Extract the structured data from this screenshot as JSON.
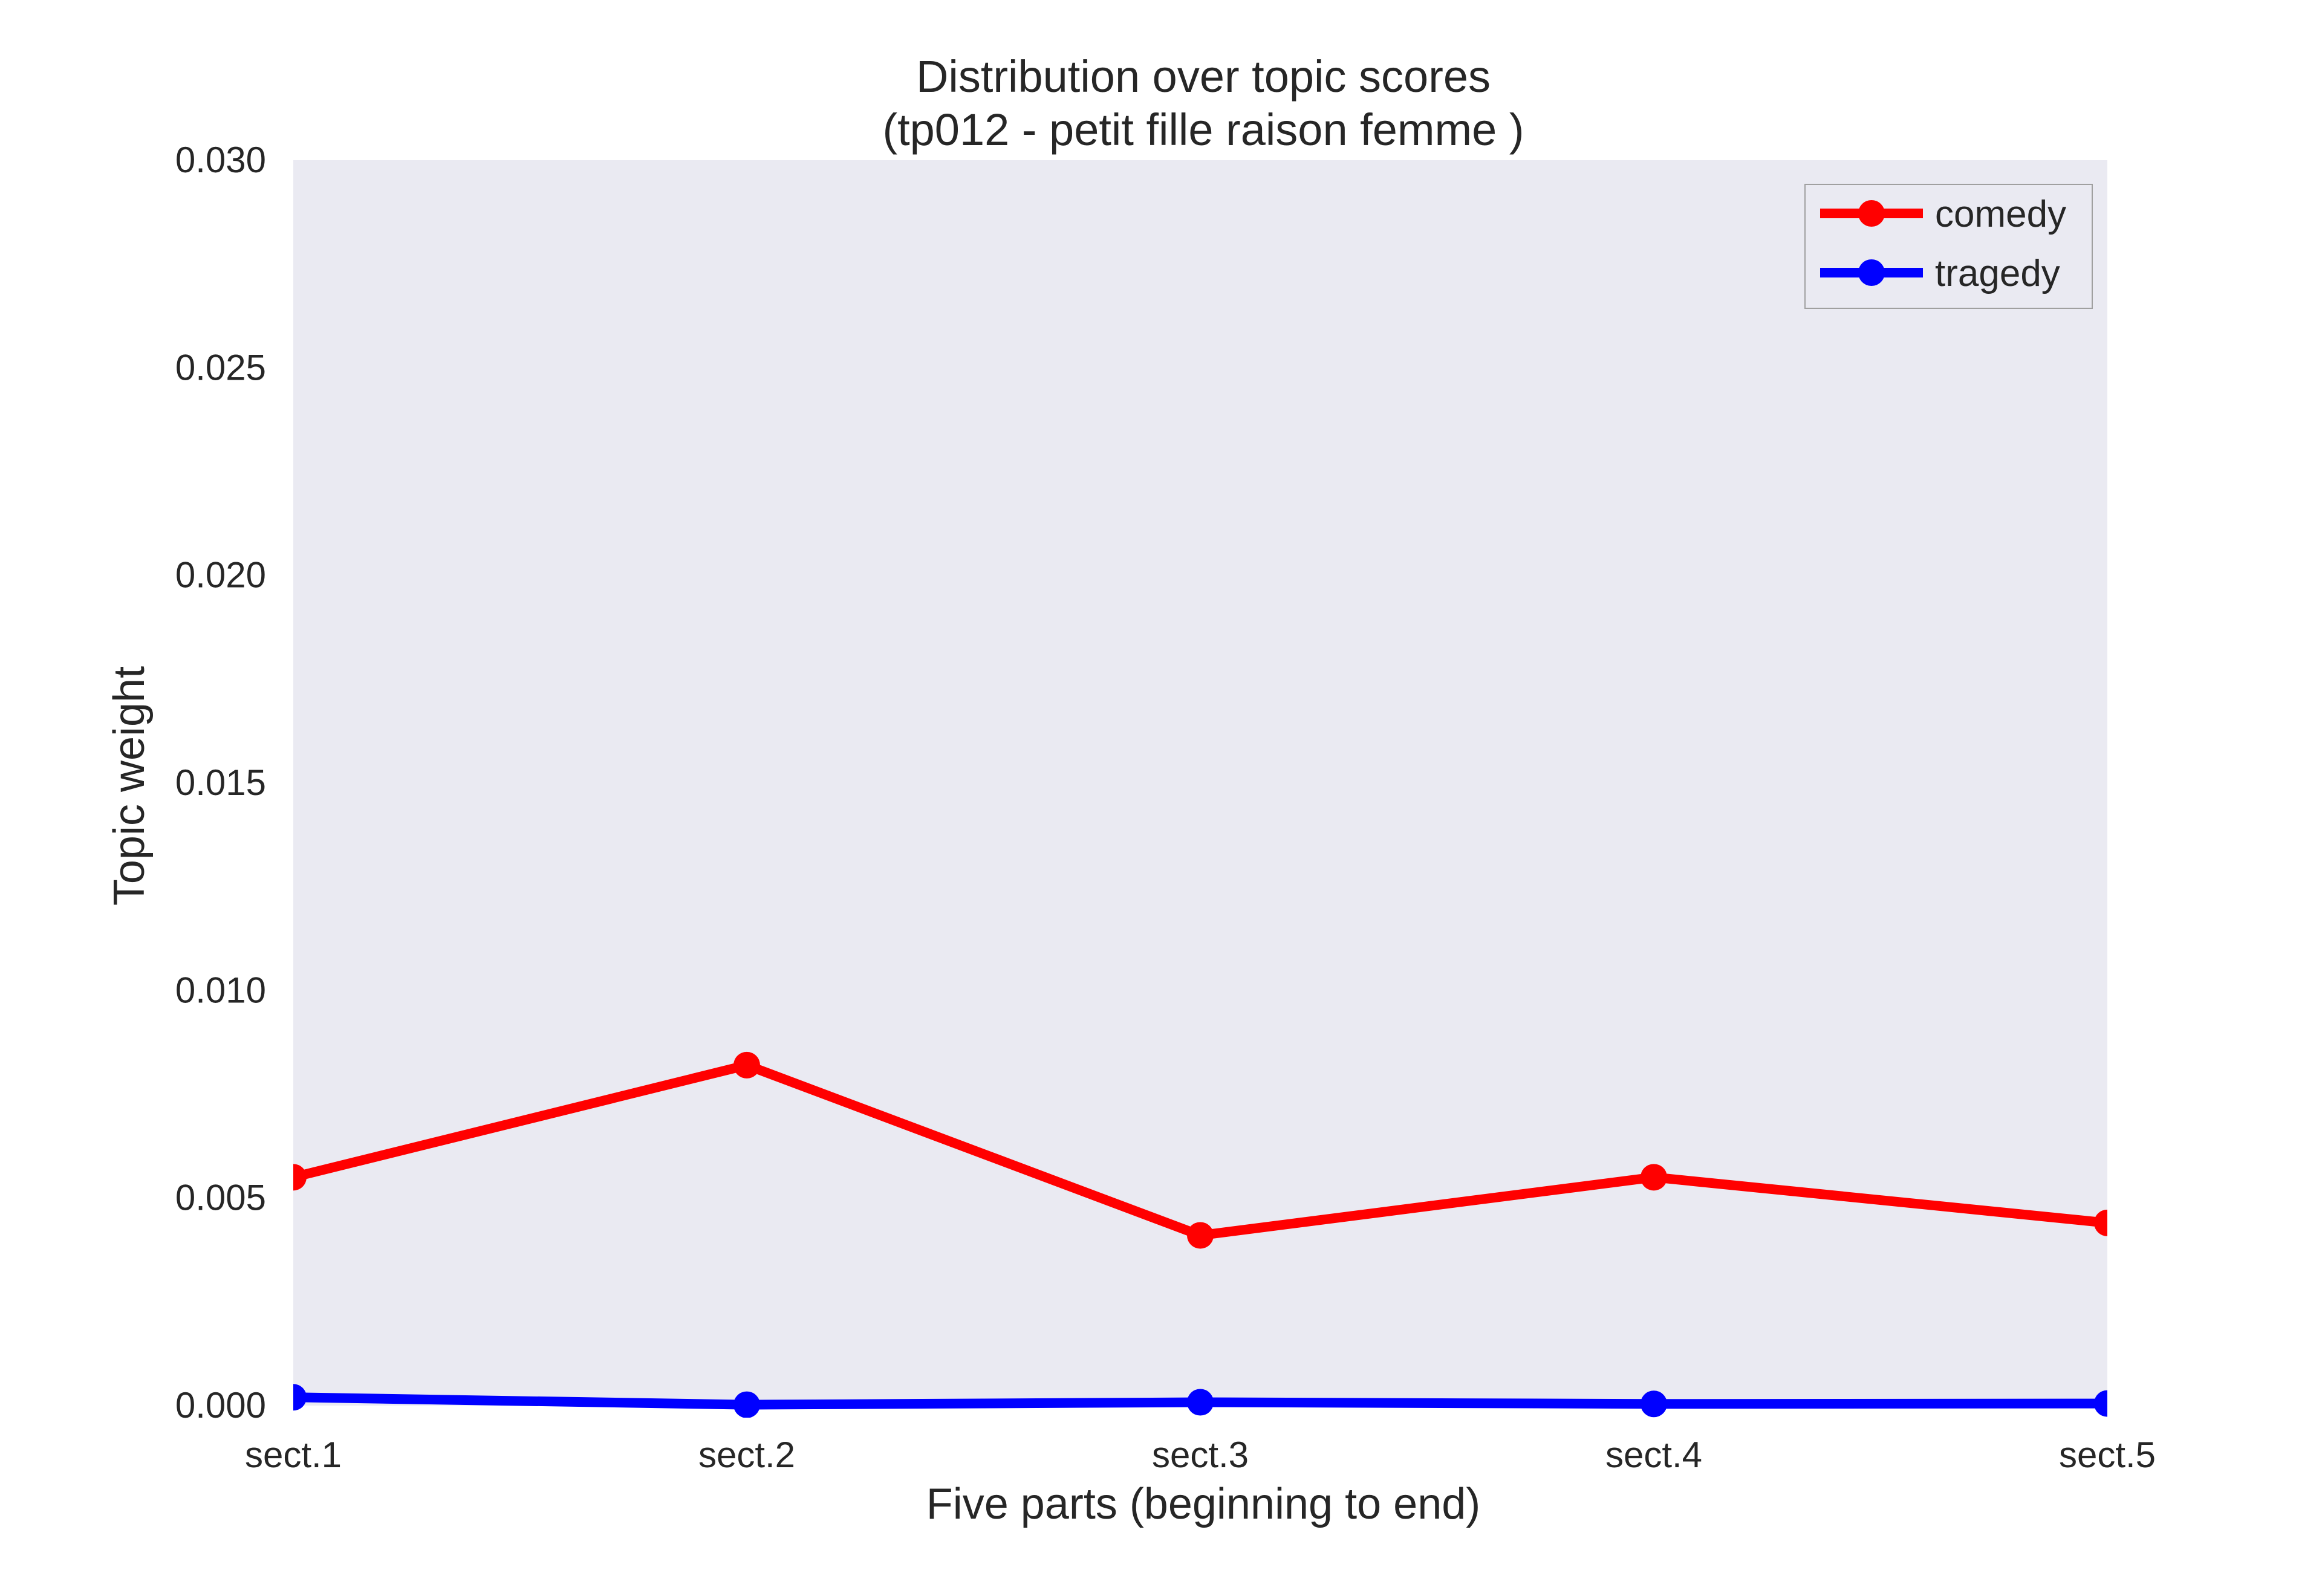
{
  "chart_data": {
    "type": "line",
    "title": "Distribution over topic scores",
    "subtitle": "(tp012 - petit fille raison femme )",
    "xlabel": "Five parts (beginning to end)",
    "ylabel": "Topic weight",
    "categories": [
      "sect.1",
      "sect.2",
      "sect.3",
      "sect.4",
      "sect.5"
    ],
    "ylim": [
      0,
      0.03
    ],
    "yticks": [
      "0.000",
      "0.005",
      "0.010",
      "0.015",
      "0.020",
      "0.025",
      "0.030"
    ],
    "grid": false,
    "legend_position": "top-right",
    "series": [
      {
        "name": "comedy",
        "color": "#ff0000",
        "values": [
          0.0055,
          0.0082,
          0.0041,
          0.0055,
          0.0044
        ]
      },
      {
        "name": "tragedy",
        "color": "#0000ff",
        "values": [
          0.0002,
          2e-05,
          8e-05,
          4e-05,
          5e-05
        ]
      }
    ],
    "plot_background": "#eaeaf2"
  }
}
